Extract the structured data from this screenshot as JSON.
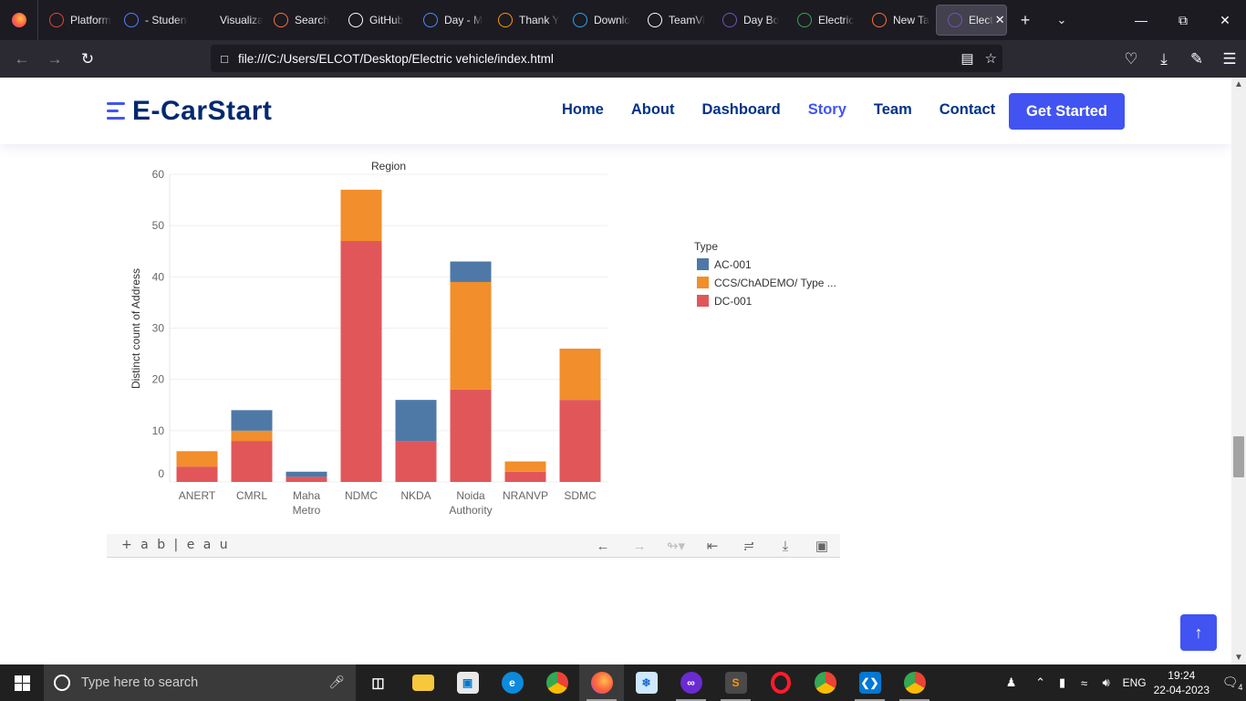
{
  "browser": {
    "tabs": [
      {
        "label": "Platform",
        "icon": "gmail-icon",
        "color": "#ea4335"
      },
      {
        "label": "- Student",
        "icon": "window-icon",
        "color": "#5b7fff"
      },
      {
        "label": "Visualization",
        "icon": "",
        "color": ""
      },
      {
        "label": "Search",
        "icon": "search-dots-icon",
        "color": "#ff7139"
      },
      {
        "label": "GitHub",
        "icon": "github-icon",
        "color": "#ffffff"
      },
      {
        "label": "Day - M",
        "icon": "flow-icon",
        "color": "#4f8cff"
      },
      {
        "label": "Thank Y",
        "icon": "sublime-icon",
        "color": "#ff9800"
      },
      {
        "label": "Downlo",
        "icon": "vscode-icon",
        "color": "#23a9f2"
      },
      {
        "label": "TeamVi",
        "icon": "teamviewer-icon",
        "color": "#ffffff"
      },
      {
        "label": "Day Bo",
        "icon": "bootstrap-icon",
        "color": "#7952b3"
      },
      {
        "label": "Electric",
        "icon": "drive-icon",
        "color": "#34a853"
      },
      {
        "label": "New Ta",
        "icon": "firefox-icon",
        "color": "#ff7139"
      },
      {
        "label": "Elect",
        "icon": "bootstrap-icon",
        "color": "#7952b3"
      }
    ],
    "url": "file:///C:/Users/ELCOT/Desktop/Electric vehicle/index.html"
  },
  "site": {
    "logo": "E-CarStart",
    "menu": [
      "Home",
      "About",
      "Dashboard",
      "Story",
      "Team",
      "Contact"
    ],
    "active_menu": "Story",
    "cta": "Get Started",
    "accent": "#4154f1",
    "navy": "#012970"
  },
  "chart_data": {
    "type": "bar",
    "stacked": true,
    "title": "Region",
    "ylabel": "Distinct count of Address",
    "xlabel": "",
    "categories": [
      "ANERT",
      "CMRL",
      "Maha Metro",
      "NDMC",
      "NKDA",
      "Noida Authority",
      "NRANVP",
      "SDMC"
    ],
    "category_lines": [
      [
        "ANERT"
      ],
      [
        "CMRL"
      ],
      [
        "Maha",
        "Metro"
      ],
      [
        "NDMC"
      ],
      [
        "NKDA"
      ],
      [
        "Noida",
        "Authority"
      ],
      [
        "NRANVP"
      ],
      [
        "SDMC"
      ]
    ],
    "series": [
      {
        "name": "DC-001",
        "color": "#e15759",
        "values": [
          3,
          8,
          1,
          47,
          8,
          18,
          2,
          16
        ]
      },
      {
        "name": "CCS/ChADEMO/ Type ...",
        "color": "#f28e2b",
        "values": [
          3,
          2,
          0,
          10,
          0,
          21,
          2,
          10
        ]
      },
      {
        "name": "AC-001",
        "color": "#4e79a7",
        "values": [
          0,
          4,
          1,
          0,
          8,
          4,
          0,
          0
        ]
      }
    ],
    "legend_title": "Type",
    "legend_order": [
      "AC-001",
      "CCS/ChADEMO/ Type ...",
      "DC-001"
    ],
    "yticks": [
      0,
      10,
      20,
      30,
      40,
      50,
      60
    ],
    "ylim": [
      0,
      60
    ],
    "grid": true,
    "legend_position": "right"
  },
  "tableau": {
    "logo": "+ a b | e a u"
  },
  "taskbar": {
    "search_placeholder": "Type here to search",
    "lang": "ENG",
    "time": "19:24",
    "date": "22-04-2023",
    "notifications": "4"
  }
}
